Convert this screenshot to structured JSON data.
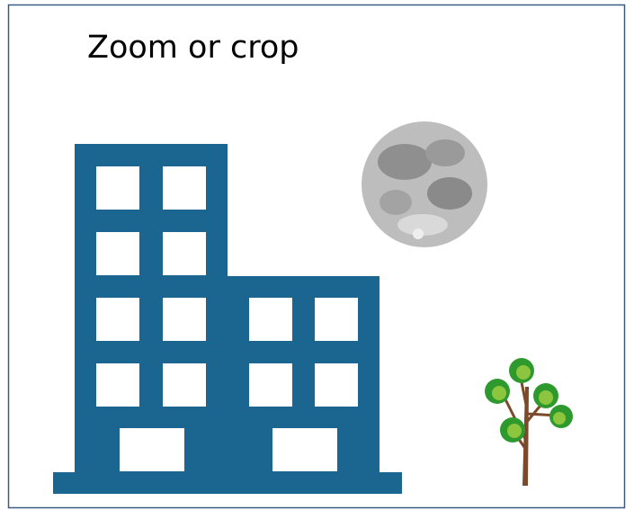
{
  "title": "Zoom or crop"
}
